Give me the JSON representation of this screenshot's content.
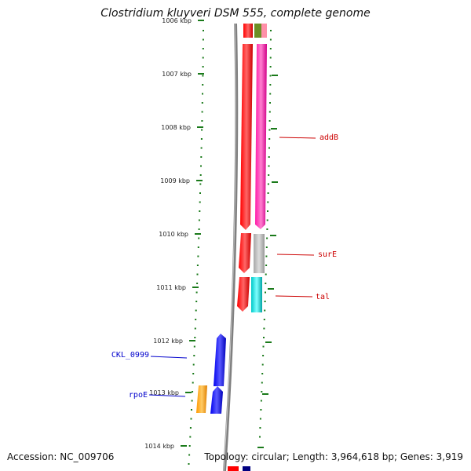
{
  "title": "Clostridium kluyveri DSM 555, complete genome",
  "footer": {
    "accession": "Accession: NC_009706",
    "topology": "Topology: circular; Length: 3,964,618 bp; Genes: 3,919"
  },
  "ticks": [
    "1006 kbp",
    "1007 kbp",
    "1008 kbp",
    "1009 kbp",
    "1010 kbp",
    "1011 kbp",
    "1012 kbp",
    "1013 kbp",
    "1014 kbp"
  ],
  "genes": [
    {
      "label": "addB",
      "color": "#cc0000"
    },
    {
      "label": "surE",
      "color": "#cc0000"
    },
    {
      "label": "tal",
      "color": "#cc0000"
    },
    {
      "label": "CKL_0999",
      "color": "#0000cc"
    },
    {
      "label": "rpoE",
      "color": "#0000cc"
    }
  ],
  "colors": {
    "forward_cds": "#ff0000",
    "reverse_cds": "#0000ff",
    "magenta": "#ff1aa8",
    "gray": "#b0b0b0",
    "cyan": "#00cccc",
    "orange": "#ff9900",
    "olive": "#6b8e23",
    "backbone": "#808080",
    "dots": "#1a7a1a"
  }
}
